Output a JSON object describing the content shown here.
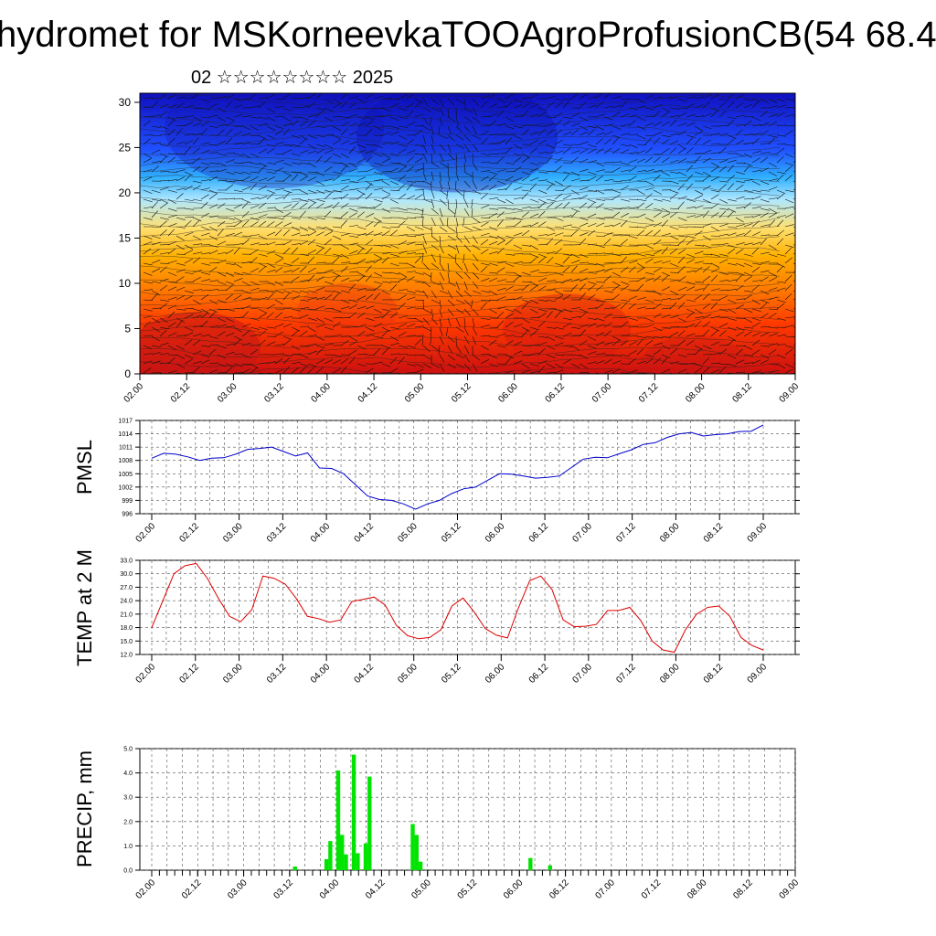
{
  "header": {
    "title": "hydromet for MSKorneevkaTOOAgroProfusionCB(54 68.4",
    "subtitle": "02 ☆☆☆☆☆☆☆☆ 2025"
  },
  "chart_data": [
    {
      "type": "heatmap",
      "title": "",
      "xlabel": "",
      "ylabel": "",
      "x_ticks": [
        "02.00",
        "02.12",
        "03.00",
        "03.12",
        "04.00",
        "04.12",
        "05.00",
        "05.12",
        "06.00",
        "06.12",
        "07.00",
        "07.12",
        "08.00",
        "08.12",
        "09.00"
      ],
      "y_ticks": [
        0,
        5,
        10,
        15,
        20,
        25,
        30
      ],
      "ylim": [
        0,
        31
      ],
      "colormap": [
        "#cc1010",
        "#ff3a00",
        "#ff7a00",
        "#ffb000",
        "#ffe070",
        "#b0e8ff",
        "#30b0ff",
        "#2050ff",
        "#1010c0"
      ],
      "overlay": "wind barbs and contour lines"
    },
    {
      "type": "line",
      "ylabel": "PMSL",
      "x_ticks": [
        "02.00",
        "02.12",
        "03.00",
        "03.12",
        "04.00",
        "04.12",
        "05.00",
        "05.12",
        "06.00",
        "06.12",
        "07.00",
        "07.12",
        "08.00",
        "08.12",
        "09.00"
      ],
      "y_ticks": [
        996,
        999,
        1002,
        1005,
        1008,
        1011,
        1014,
        1017
      ],
      "ylim": [
        996,
        1017
      ],
      "color": "#0000cc",
      "series": [
        {
          "values": [
            1008.5,
            1009.6,
            1009.4,
            1008.8,
            1008.0,
            1008.5,
            1008.6,
            1009.4,
            1010.5,
            1010.7,
            1011.0,
            1010.0,
            1009.0,
            1009.7,
            1006.3,
            1006.2,
            1005.0,
            1002.5,
            1000.0,
            999.2,
            999.0,
            998.2,
            997.0,
            998.2,
            999.0,
            1000.5,
            1001.6,
            1002.0,
            1003.5,
            1005.0,
            1004.9,
            1004.5,
            1004.0,
            1004.2,
            1004.5,
            1006.4,
            1008.3,
            1008.7,
            1008.6,
            1009.5,
            1010.4,
            1011.6,
            1012.0,
            1013.2,
            1014.0,
            1014.3,
            1013.5,
            1013.8,
            1014.0,
            1014.5,
            1014.6,
            1016.0
          ]
        }
      ]
    },
    {
      "type": "line",
      "ylabel": "TEMP at 2 M",
      "x_ticks": [
        "02.00",
        "02.12",
        "03.00",
        "03.12",
        "04.00",
        "04.12",
        "05.00",
        "05.12",
        "06.00",
        "06.12",
        "07.00",
        "07.12",
        "08.00",
        "08.12",
        "09.00"
      ],
      "y_ticks": [
        "12.0",
        "15.0",
        "18.0",
        "21.0",
        "24.0",
        "27.0",
        "30.0",
        "33.0"
      ],
      "ylim": [
        12,
        33
      ],
      "color": "#dd0000",
      "series": [
        {
          "values": [
            18,
            24,
            30,
            31.8,
            32.3,
            29,
            24.5,
            20.5,
            19.3,
            22,
            29.5,
            29,
            27.7,
            24.5,
            20.5,
            20,
            19.2,
            19.7,
            23.8,
            24.3,
            24.8,
            23,
            18.5,
            16.2,
            15.5,
            15.8,
            17.5,
            22.8,
            24.6,
            21.5,
            17.8,
            16.3,
            15.7,
            22.5,
            28.5,
            29.5,
            26.5,
            19.7,
            18.2,
            18.3,
            18.7,
            21.8,
            21.8,
            22.5,
            19.5,
            15,
            13,
            12.5,
            17.5,
            21,
            22.5,
            22.8,
            20.5,
            15.8,
            14,
            13
          ]
        }
      ]
    },
    {
      "type": "bar",
      "ylabel": "PRECIP, mm",
      "x_ticks": [
        "02.00",
        "02.12",
        "03.00",
        "03.12",
        "04.00",
        "04.12",
        "05.00",
        "05.12",
        "06.00",
        "06.12",
        "07.00",
        "07.12",
        "08.00",
        "08.12",
        "09.00"
      ],
      "y_ticks": [
        "0.0",
        "1.0",
        "2.0",
        "3.0",
        "4.0",
        "5.0"
      ],
      "ylim": [
        0,
        5
      ],
      "color": "#00e400",
      "values": [
        0,
        0,
        0,
        0,
        0,
        0,
        0,
        0,
        0,
        0,
        0,
        0,
        0,
        0,
        0,
        0,
        0,
        0,
        0,
        0,
        0,
        0,
        0,
        0,
        0,
        0,
        0,
        0,
        0,
        0,
        0,
        0,
        0,
        0,
        0,
        0,
        0.15,
        0,
        0,
        0,
        0,
        0,
        0,
        0,
        0.45,
        1.2,
        0,
        4.1,
        1.45,
        0.65,
        0,
        4.75,
        0.7,
        0,
        1.1,
        3.85,
        0,
        0,
        0,
        0,
        0,
        0,
        0,
        0,
        0,
        0,
        1.9,
        1.45,
        0.35,
        0,
        0,
        0,
        0,
        0,
        0,
        0,
        0,
        0,
        0,
        0,
        0,
        0,
        0,
        0,
        0,
        0,
        0,
        0,
        0,
        0,
        0,
        0,
        0,
        0,
        0,
        0,
        0.5,
        0,
        0,
        0,
        0,
        0.2,
        0,
        0,
        0,
        0,
        0,
        0,
        0,
        0,
        0,
        0,
        0,
        0,
        0,
        0,
        0,
        0,
        0,
        0,
        0,
        0,
        0,
        0,
        0,
        0,
        0,
        0,
        0,
        0,
        0,
        0,
        0,
        0,
        0,
        0,
        0,
        0,
        0,
        0,
        0,
        0,
        0,
        0,
        0,
        0,
        0,
        0,
        0,
        0,
        0,
        0,
        0,
        0,
        0,
        0,
        0,
        0,
        0,
        0,
        0,
        0,
        0,
        0,
        0
      ]
    }
  ]
}
